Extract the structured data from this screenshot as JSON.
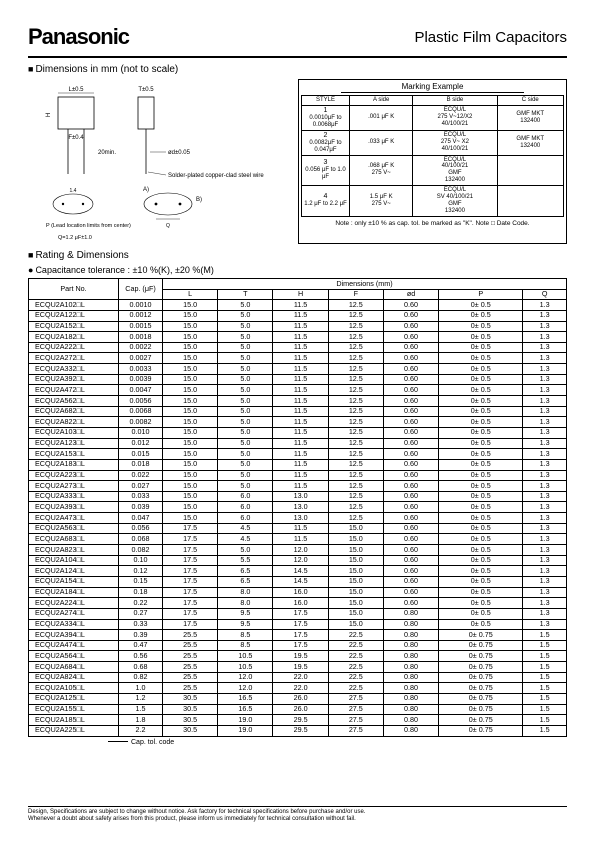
{
  "brand": "Panasonic",
  "page_title": "Plastic Film Capacitors",
  "section_dimensions": "Dimensions in mm (not to scale)",
  "diagram_labels": {
    "t_tol": "T±0.5",
    "l_tol": "L±0.5",
    "h": "H",
    "f_tol": "F±0.4",
    "lead_min": "20min.",
    "phi_d": "ød±0.05",
    "wire": "Solder-plated copper-clad steel wire",
    "p_note": "P (Lead location limits from center)",
    "q_range": "Q=1.2 μF±1.0",
    "small_14": "1.4",
    "a1": "A)",
    "b1": "B)"
  },
  "marking": {
    "title": "Marking Example",
    "cols": [
      "STYLE",
      "A side",
      "B side",
      "C side"
    ],
    "rows": [
      {
        "style": "1",
        "range": "0.0010μF to 0.0068μF",
        "a": ".001 μF   K",
        "b": "ECQU/L\n275 V~12/X2\n40/100/21",
        "c": "GMF MKT\n132400"
      },
      {
        "style": "2",
        "range": "0.0082μF to 0.047μF",
        "a": ".033 μF   K",
        "b": "ECQU/L\n275 V~ X2\n40/100/21",
        "c": "GMF MKT\n132400"
      },
      {
        "style": "3",
        "range": "0.056 μF to 1.0 μF",
        "a": ".068 μF   K\n275 V~",
        "b": "ECQU/L\n40/100/21\nGMF\n132400",
        "c": ""
      },
      {
        "style": "4",
        "range": "1.2 μF to 2.2 μF",
        "a": "1.5 μF   K\n275 V~",
        "b": "ECQU/L\nSV 40/100/21\nGMF\n132400",
        "c": ""
      }
    ],
    "note": "Note : only ±10 % as cap. tol. be marked as \"K\". Note □ Date Code."
  },
  "section_rating": "Rating & Dimensions",
  "tolerance_note": "Capacitance tolerance : ±10 %(K), ±20 %(M)",
  "dim_table": {
    "headers_top": [
      "Part No.",
      "Cap. (μF)",
      "Dimensions (mm)"
    ],
    "headers_dim": [
      "L",
      "T",
      "H",
      "F",
      "ød",
      "P",
      "Q"
    ],
    "rows": [
      [
        "ECQU2A102□L",
        "0.0010",
        "15.0",
        "5.0",
        "11.5",
        "12.5",
        "0.60",
        "0± 0.5",
        "1.3"
      ],
      [
        "ECQU2A122□L",
        "0.0012",
        "15.0",
        "5.0",
        "11.5",
        "12.5",
        "0.60",
        "0± 0.5",
        "1.3"
      ],
      [
        "ECQU2A152□L",
        "0.0015",
        "15.0",
        "5.0",
        "11.5",
        "12.5",
        "0.60",
        "0± 0.5",
        "1.3"
      ],
      [
        "ECQU2A182□L",
        "0.0018",
        "15.0",
        "5.0",
        "11.5",
        "12.5",
        "0.60",
        "0± 0.5",
        "1.3"
      ],
      [
        "ECQU2A222□L",
        "0.0022",
        "15.0",
        "5.0",
        "11.5",
        "12.5",
        "0.60",
        "0± 0.5",
        "1.3"
      ],
      [
        "ECQU2A272□L",
        "0.0027",
        "15.0",
        "5.0",
        "11.5",
        "12.5",
        "0.60",
        "0± 0.5",
        "1.3"
      ],
      [
        "ECQU2A332□L",
        "0.0033",
        "15.0",
        "5.0",
        "11.5",
        "12.5",
        "0.60",
        "0± 0.5",
        "1.3"
      ],
      [
        "ECQU2A392□L",
        "0.0039",
        "15.0",
        "5.0",
        "11.5",
        "12.5",
        "0.60",
        "0± 0.5",
        "1.3"
      ],
      [
        "ECQU2A472□L",
        "0.0047",
        "15.0",
        "5.0",
        "11.5",
        "12.5",
        "0.60",
        "0± 0.5",
        "1.3"
      ],
      [
        "ECQU2A562□L",
        "0.0056",
        "15.0",
        "5.0",
        "11.5",
        "12.5",
        "0.60",
        "0± 0.5",
        "1.3"
      ],
      [
        "ECQU2A682□L",
        "0.0068",
        "15.0",
        "5.0",
        "11.5",
        "12.5",
        "0.60",
        "0± 0.5",
        "1.3"
      ],
      [
        "ECQU2A822□L",
        "0.0082",
        "15.0",
        "5.0",
        "11.5",
        "12.5",
        "0.60",
        "0± 0.5",
        "1.3"
      ],
      [
        "ECQU2A103□L",
        "0.010",
        "15.0",
        "5.0",
        "11.5",
        "12.5",
        "0.60",
        "0± 0.5",
        "1.3"
      ],
      [
        "ECQU2A123□L",
        "0.012",
        "15.0",
        "5.0",
        "11.5",
        "12.5",
        "0.60",
        "0± 0.5",
        "1.3"
      ],
      [
        "ECQU2A153□L",
        "0.015",
        "15.0",
        "5.0",
        "11.5",
        "12.5",
        "0.60",
        "0± 0.5",
        "1.3"
      ],
      [
        "ECQU2A183□L",
        "0.018",
        "15.0",
        "5.0",
        "11.5",
        "12.5",
        "0.60",
        "0± 0.5",
        "1.3"
      ],
      [
        "ECQU2A223□L",
        "0.022",
        "15.0",
        "5.0",
        "11.5",
        "12.5",
        "0.60",
        "0± 0.5",
        "1.3"
      ],
      [
        "ECQU2A273□L",
        "0.027",
        "15.0",
        "5.0",
        "11.5",
        "12.5",
        "0.60",
        "0± 0.5",
        "1.3"
      ],
      [
        "ECQU2A333□L",
        "0.033",
        "15.0",
        "6.0",
        "13.0",
        "12.5",
        "0.60",
        "0± 0.5",
        "1.3"
      ],
      [
        "ECQU2A393□L",
        "0.039",
        "15.0",
        "6.0",
        "13.0",
        "12.5",
        "0.60",
        "0± 0.5",
        "1.3"
      ],
      [
        "ECQU2A473□L",
        "0.047",
        "15.0",
        "6.0",
        "13.0",
        "12.5",
        "0.60",
        "0± 0.5",
        "1.3"
      ],
      [
        "ECQU2A563□L",
        "0.056",
        "17.5",
        "4.5",
        "11.5",
        "15.0",
        "0.60",
        "0± 0.5",
        "1.3"
      ],
      [
        "ECQU2A683□L",
        "0.068",
        "17.5",
        "4.5",
        "11.5",
        "15.0",
        "0.60",
        "0± 0.5",
        "1.3"
      ],
      [
        "ECQU2A823□L",
        "0.082",
        "17.5",
        "5.0",
        "12.0",
        "15.0",
        "0.60",
        "0± 0.5",
        "1.3"
      ],
      [
        "ECQU2A104□L",
        "0.10",
        "17.5",
        "5.5",
        "12.0",
        "15.0",
        "0.60",
        "0± 0.5",
        "1.3"
      ],
      [
        "ECQU2A124□L",
        "0.12",
        "17.5",
        "6.5",
        "14.5",
        "15.0",
        "0.60",
        "0± 0.5",
        "1.3"
      ],
      [
        "ECQU2A154□L",
        "0.15",
        "17.5",
        "6.5",
        "14.5",
        "15.0",
        "0.60",
        "0± 0.5",
        "1.3"
      ],
      [
        "ECQU2A184□L",
        "0.18",
        "17.5",
        "8.0",
        "16.0",
        "15.0",
        "0.60",
        "0± 0.5",
        "1.3"
      ],
      [
        "ECQU2A224□L",
        "0.22",
        "17.5",
        "8.0",
        "16.0",
        "15.0",
        "0.60",
        "0± 0.5",
        "1.3"
      ],
      [
        "ECQU2A274□L",
        "0.27",
        "17.5",
        "9.5",
        "17.5",
        "15.0",
        "0.80",
        "0± 0.5",
        "1.3"
      ],
      [
        "ECQU2A334□L",
        "0.33",
        "17.5",
        "9.5",
        "17.5",
        "15.0",
        "0.80",
        "0± 0.5",
        "1.3"
      ],
      [
        "ECQU2A394□L",
        "0.39",
        "25.5",
        "8.5",
        "17.5",
        "22.5",
        "0.80",
        "0± 0.75",
        "1.5"
      ],
      [
        "ECQU2A474□L",
        "0.47",
        "25.5",
        "8.5",
        "17.5",
        "22.5",
        "0.80",
        "0± 0.75",
        "1.5"
      ],
      [
        "ECQU2A564□L",
        "0.56",
        "25.5",
        "10.5",
        "19.5",
        "22.5",
        "0.80",
        "0± 0.75",
        "1.5"
      ],
      [
        "ECQU2A684□L",
        "0.68",
        "25.5",
        "10.5",
        "19.5",
        "22.5",
        "0.80",
        "0± 0.75",
        "1.5"
      ],
      [
        "ECQU2A824□L",
        "0.82",
        "25.5",
        "12.0",
        "22.0",
        "22.5",
        "0.80",
        "0± 0.75",
        "1.5"
      ],
      [
        "ECQU2A105□L",
        "1.0",
        "25.5",
        "12.0",
        "22.0",
        "22.5",
        "0.80",
        "0± 0.75",
        "1.5"
      ],
      [
        "ECQU2A125□L",
        "1.2",
        "30.5",
        "16.5",
        "26.0",
        "27.5",
        "0.80",
        "0± 0.75",
        "1.5"
      ],
      [
        "ECQU2A155□L",
        "1.5",
        "30.5",
        "16.5",
        "26.0",
        "27.5",
        "0.80",
        "0± 0.75",
        "1.5"
      ],
      [
        "ECQU2A185□L",
        "1.8",
        "30.5",
        "19.0",
        "29.5",
        "27.5",
        "0.80",
        "0± 0.75",
        "1.5"
      ],
      [
        "ECQU2A225□L",
        "2.2",
        "30.5",
        "19.0",
        "29.5",
        "27.5",
        "0.80",
        "0± 0.75",
        "1.5"
      ]
    ],
    "cap_tol_label": "Cap. tol. code"
  },
  "footer": [
    "Design, Specifications are subject to change without notice.    Ask factory for technical specifications before purchase and/or use.",
    "Whenever a doubt about safety arises from this product, please inform us immediately for technical consultation without fail."
  ]
}
